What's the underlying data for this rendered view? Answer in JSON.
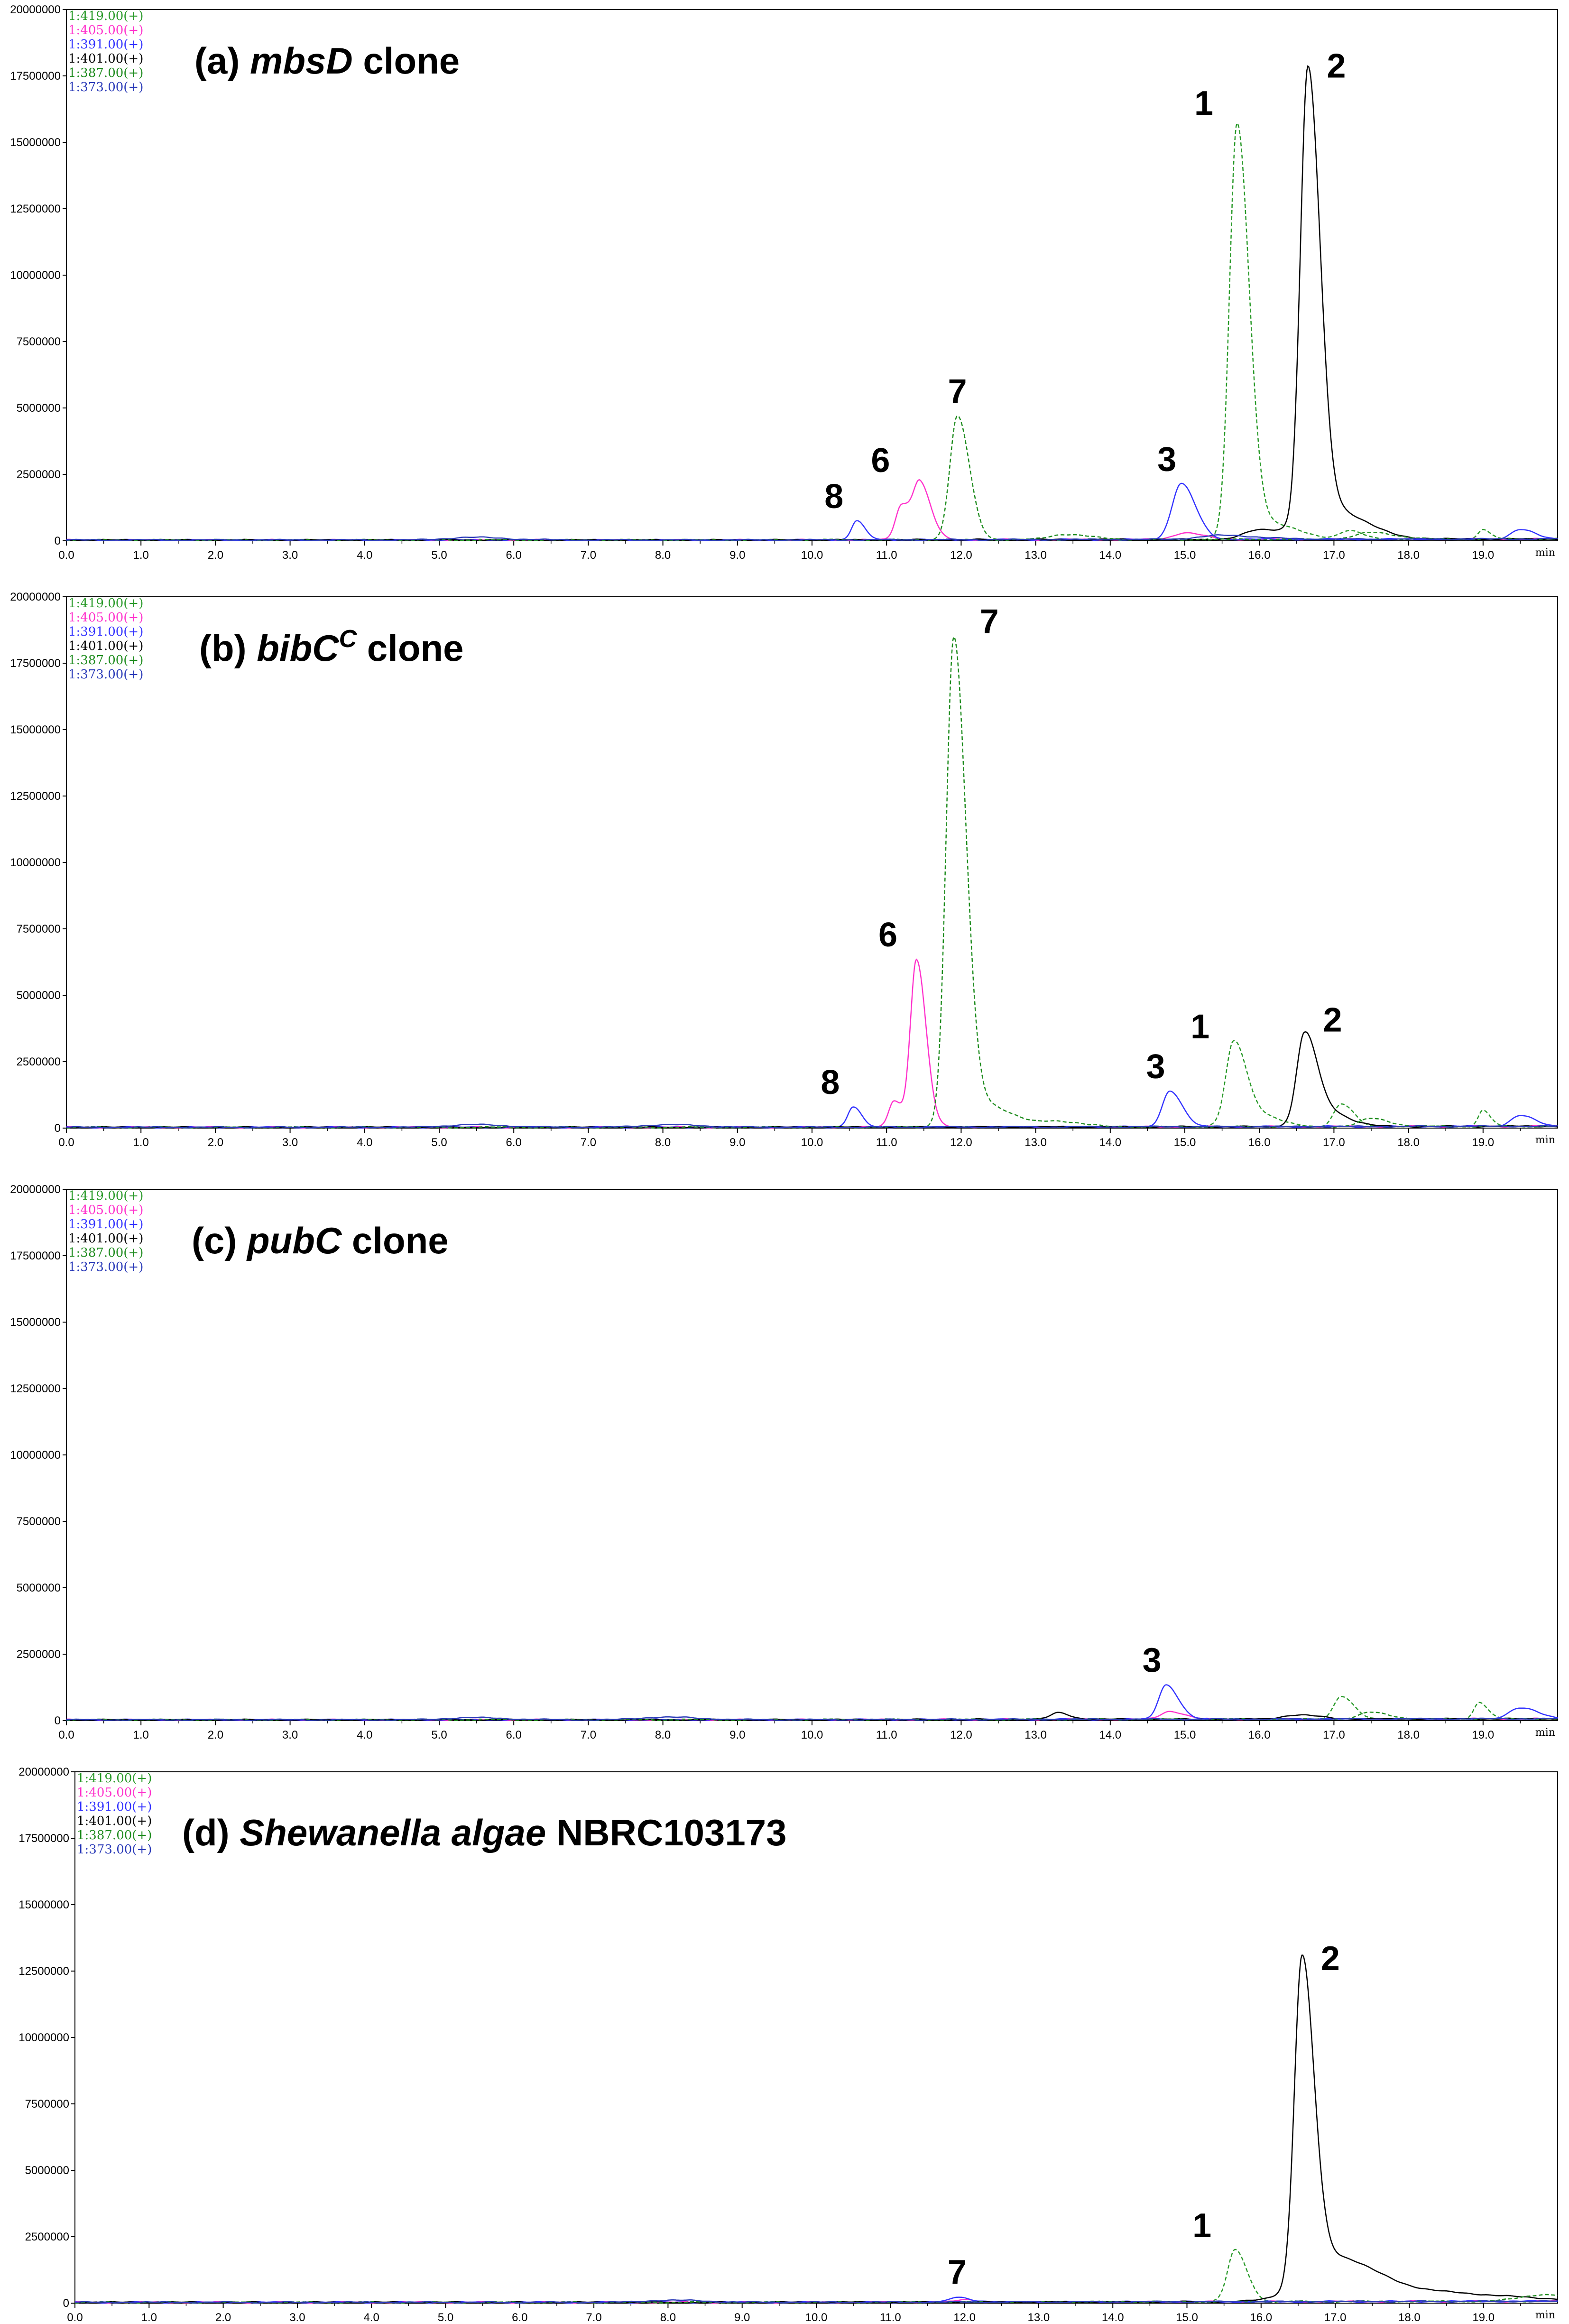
{
  "chart_data": [
    {
      "type": "line",
      "title_parts": [
        {
          "text": "(a) ",
          "italic": false
        },
        {
          "text": "mbsD",
          "italic": true
        },
        {
          "text": " clone",
          "italic": false
        }
      ],
      "xlabel": "min",
      "ylabel": "",
      "xlim": [
        0,
        20.0
      ],
      "ylim": [
        0,
        20000000
      ],
      "x_ticks": [
        "0.0",
        "1.0",
        "2.0",
        "3.0",
        "4.0",
        "5.0",
        "6.0",
        "7.0",
        "8.0",
        "9.0",
        "10.0",
        "11.0",
        "12.0",
        "13.0",
        "14.0",
        "15.0",
        "16.0",
        "17.0",
        "18.0",
        "19.0"
      ],
      "y_ticks": [
        "20000000",
        "17500000",
        "15000000",
        "12500000",
        "10000000",
        "7500000",
        "5000000",
        "2500000",
        "0"
      ],
      "series": [
        {
          "name": "1:419.00(+)",
          "color": "#2a9a2a",
          "peaks": [
            [
              15.7,
              15500000,
              0.1
            ],
            [
              16.1,
              600000,
              0.25
            ],
            [
              17.2,
              300000,
              0.12
            ],
            [
              19.0,
              350000,
              0.06
            ]
          ]
        },
        {
          "name": "1:405.00(+)",
          "color": "#ff33cc",
          "peaks": [
            [
              11.2,
              1300000,
              0.08
            ],
            [
              11.45,
              2050000,
              0.09
            ],
            [
              15.0,
              250000,
              0.15
            ]
          ]
        },
        {
          "name": "1:391.00(+)",
          "color": "#3333ff",
          "peaks": [
            [
              10.6,
              700000,
              0.07
            ],
            [
              14.95,
              2100000,
              0.12
            ],
            [
              19.5,
              350000,
              0.12
            ]
          ]
        },
        {
          "name": "1:401.00(+)",
          "color": "#000000",
          "peaks": [
            [
              16.65,
              16900000,
              0.1
            ],
            [
              16.9,
              1200000,
              0.3
            ],
            [
              16.0,
              350000,
              0.2
            ]
          ]
        },
        {
          "name": "1:387.00(+)",
          "color": "#1f8c1f",
          "peaks": [
            [
              11.95,
              4650000,
              0.1
            ],
            [
              13.4,
              200000,
              0.2
            ],
            [
              17.5,
              250000,
              0.2
            ]
          ]
        },
        {
          "name": "1:373.00(+)",
          "color": "#2a3ab8",
          "peaks": [
            [
              5.4,
              100000,
              0.3
            ],
            [
              15.5,
              150000,
              0.3
            ]
          ]
        }
      ],
      "annotations": [
        {
          "label": "1",
          "x": 15.7,
          "y": 15500000
        },
        {
          "label": "2",
          "x": 16.65,
          "y": 16900000
        },
        {
          "label": "3",
          "x": 14.95,
          "y": 2100000
        },
        {
          "label": "6",
          "x": 11.3,
          "y": 2050000
        },
        {
          "label": "7",
          "x": 11.95,
          "y": 4650000
        },
        {
          "label": "8",
          "x": 10.6,
          "y": 700000
        }
      ]
    },
    {
      "type": "line",
      "title_parts": [
        {
          "text": "(b) ",
          "italic": false
        },
        {
          "text": "bibC",
          "italic": true
        },
        {
          "text": "C",
          "italic": true,
          "sup": true
        },
        {
          "text": " clone",
          "italic": false
        }
      ],
      "xlabel": "min",
      "ylabel": "",
      "xlim": [
        0,
        20.0
      ],
      "ylim": [
        0,
        20000000
      ],
      "x_ticks": [
        "0.0",
        "1.0",
        "2.0",
        "3.0",
        "4.0",
        "5.0",
        "6.0",
        "7.0",
        "8.0",
        "9.0",
        "10.0",
        "11.0",
        "12.0",
        "13.0",
        "14.0",
        "15.0",
        "16.0",
        "17.0",
        "18.0",
        "19.0"
      ],
      "y_ticks": [
        "20000000",
        "17500000",
        "15000000",
        "12500000",
        "10000000",
        "7500000",
        "5000000",
        "2500000",
        "0"
      ],
      "series": [
        {
          "name": "1:419.00(+)",
          "color": "#2a9a2a",
          "peaks": [
            [
              15.65,
              2850000,
              0.1
            ],
            [
              15.85,
              600000,
              0.2
            ],
            [
              17.1,
              850000,
              0.1
            ],
            [
              19.0,
              600000,
              0.06
            ]
          ]
        },
        {
          "name": "1:405.00(+)",
          "color": "#ff33cc",
          "peaks": [
            [
              11.1,
              1000000,
              0.07
            ],
            [
              11.4,
              6300000,
              0.08
            ]
          ]
        },
        {
          "name": "1:391.00(+)",
          "color": "#3333ff",
          "peaks": [
            [
              10.55,
              750000,
              0.07
            ],
            [
              14.8,
              1350000,
              0.1
            ],
            [
              19.5,
              400000,
              0.12
            ]
          ]
        },
        {
          "name": "1:401.00(+)",
          "color": "#000000",
          "peaks": [
            [
              16.6,
              3100000,
              0.1
            ],
            [
              16.8,
              700000,
              0.2
            ]
          ]
        },
        {
          "name": "1:387.00(+)",
          "color": "#1f8c1f",
          "peaks": [
            [
              11.9,
              18100000,
              0.1
            ],
            [
              12.25,
              900000,
              0.25
            ],
            [
              13.3,
              200000,
              0.2
            ],
            [
              17.5,
              300000,
              0.15
            ]
          ]
        },
        {
          "name": "1:373.00(+)",
          "color": "#2a3ab8",
          "peaks": [
            [
              5.4,
              100000,
              0.3
            ],
            [
              8.0,
              100000,
              0.3
            ]
          ]
        }
      ],
      "annotations": [
        {
          "label": "1",
          "x": 15.65,
          "y": 2850000
        },
        {
          "label": "2",
          "x": 16.6,
          "y": 3100000
        },
        {
          "label": "3",
          "x": 14.8,
          "y": 1350000
        },
        {
          "label": "6",
          "x": 11.4,
          "y": 6300000
        },
        {
          "label": "7",
          "x": 11.9,
          "y": 18100000
        },
        {
          "label": "8",
          "x": 10.55,
          "y": 750000
        }
      ]
    },
    {
      "type": "line",
      "title_parts": [
        {
          "text": "(c) ",
          "italic": false
        },
        {
          "text": "pubC",
          "italic": true
        },
        {
          "text": " clone",
          "italic": false
        }
      ],
      "xlabel": "min",
      "ylabel": "",
      "xlim": [
        0,
        20.0
      ],
      "ylim": [
        0,
        20000000
      ],
      "x_ticks": [
        "0.0",
        "1.0",
        "2.0",
        "3.0",
        "4.0",
        "5.0",
        "6.0",
        "7.0",
        "8.0",
        "9.0",
        "10.0",
        "11.0",
        "12.0",
        "13.0",
        "14.0",
        "15.0",
        "16.0",
        "17.0",
        "18.0",
        "19.0"
      ],
      "y_ticks": [
        "20000000",
        "17500000",
        "15000000",
        "12500000",
        "10000000",
        "7500000",
        "5000000",
        "2500000",
        "0"
      ],
      "series": [
        {
          "name": "1:419.00(+)",
          "color": "#2a9a2a",
          "peaks": [
            [
              17.1,
              850000,
              0.1
            ],
            [
              18.95,
              600000,
              0.07
            ]
          ]
        },
        {
          "name": "1:405.00(+)",
          "color": "#ff33cc",
          "peaks": [
            [
              14.8,
              300000,
              0.12
            ]
          ]
        },
        {
          "name": "1:391.00(+)",
          "color": "#3333ff",
          "peaks": [
            [
              14.75,
              1300000,
              0.1
            ],
            [
              19.5,
              400000,
              0.15
            ]
          ]
        },
        {
          "name": "1:401.00(+)",
          "color": "#000000",
          "peaks": [
            [
              16.5,
              150000,
              0.2
            ],
            [
              13.3,
              250000,
              0.1
            ]
          ]
        },
        {
          "name": "1:387.00(+)",
          "color": "#1f8c1f",
          "peaks": [
            [
              17.5,
              250000,
              0.15
            ]
          ]
        },
        {
          "name": "1:373.00(+)",
          "color": "#2a3ab8",
          "peaks": [
            [
              8.0,
              100000,
              0.3
            ],
            [
              5.4,
              80000,
              0.3
            ]
          ]
        }
      ],
      "annotations": [
        {
          "label": "3",
          "x": 14.75,
          "y": 1300000
        }
      ]
    },
    {
      "type": "line",
      "title_parts": [
        {
          "text": "(d) ",
          "italic": false
        },
        {
          "text": "Shewanella algae",
          "italic": true
        },
        {
          "text": " NBRC103173",
          "italic": false
        }
      ],
      "xlabel": "min",
      "ylabel": "",
      "xlim": [
        0,
        20.0
      ],
      "ylim": [
        0,
        20000000
      ],
      "x_ticks": [
        "0.0",
        "1.0",
        "2.0",
        "3.0",
        "4.0",
        "5.0",
        "6.0",
        "7.0",
        "8.0",
        "9.0",
        "10.0",
        "11.0",
        "12.0",
        "13.0",
        "14.0",
        "15.0",
        "16.0",
        "17.0",
        "18.0",
        "19.0"
      ],
      "y_ticks": [
        "20000000",
        "17500000",
        "15000000",
        "12500000",
        "10000000",
        "7500000",
        "5000000",
        "2500000",
        "0"
      ],
      "series": [
        {
          "name": "1:419.00(+)",
          "color": "#2a9a2a",
          "peaks": [
            [
              15.65,
              1950000,
              0.1
            ]
          ]
        },
        {
          "name": "1:405.00(+)",
          "color": "#ff33cc",
          "peaks": [
            [
              12.0,
              100000,
              0.1
            ]
          ]
        },
        {
          "name": "1:391.00(+)",
          "color": "#3333ff",
          "peaks": [
            [
              11.9,
              200000,
              0.1
            ]
          ]
        },
        {
          "name": "1:401.00(+)",
          "color": "#000000",
          "peaks": [
            [
              16.55,
              12000000,
              0.1
            ],
            [
              16.9,
              1500000,
              0.35
            ],
            [
              17.8,
              400000,
              0.8
            ]
          ]
        },
        {
          "name": "1:387.00(+)",
          "color": "#1f8c1f",
          "peaks": [
            [
              19.8,
              250000,
              0.3
            ]
          ]
        },
        {
          "name": "1:373.00(+)",
          "color": "#2a3ab8",
          "peaks": [
            [
              8.0,
              80000,
              0.3
            ]
          ]
        }
      ],
      "annotations": [
        {
          "label": "1",
          "x": 15.65,
          "y": 1950000
        },
        {
          "label": "2",
          "x": 16.55,
          "y": 12000000
        },
        {
          "label": "7",
          "x": 11.9,
          "y": 200000
        }
      ]
    }
  ]
}
